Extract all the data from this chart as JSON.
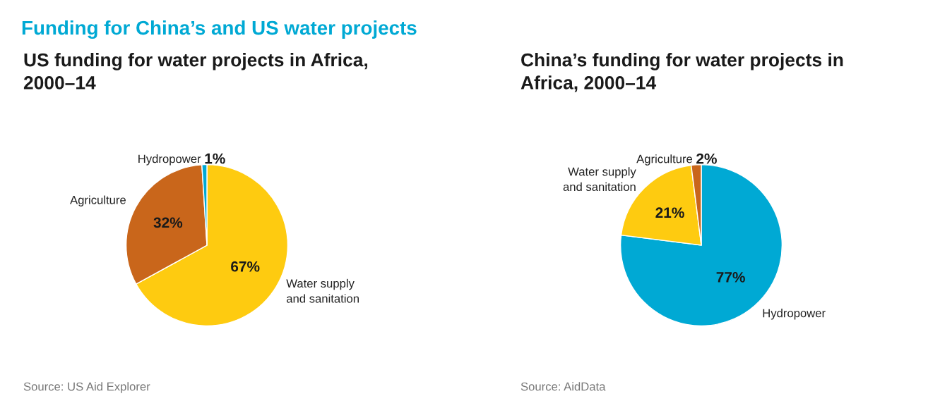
{
  "chart_data": [
    {
      "type": "pie",
      "title": "US funding for water projects in Africa,\n2000–14",
      "categories": [
        "Water supply\nand sanitation",
        "Agriculture",
        "Hydropower"
      ],
      "values": [
        67,
        32,
        1
      ],
      "colors": [
        "#fecb10",
        "#c9661b",
        "#00a9d4"
      ],
      "value_labels": [
        "67%",
        "32%",
        "1%"
      ],
      "legend": false,
      "annotations": [
        "Funding for China’s and US water projects",
        "Source: US Aid Explorer"
      ]
    },
    {
      "type": "pie",
      "title": "China’s funding for water projects in\nAfrica, 2000–14",
      "categories": [
        "Hydropower",
        "Water supply\nand sanitation",
        "Agriculture"
      ],
      "values": [
        77,
        21,
        2
      ],
      "colors": [
        "#00a9d4",
        "#fecb10",
        "#c9661b"
      ],
      "value_labels": [
        "77%",
        "21%",
        "2%"
      ],
      "legend": false,
      "annotations": [
        "Source: AidData"
      ]
    }
  ]
}
